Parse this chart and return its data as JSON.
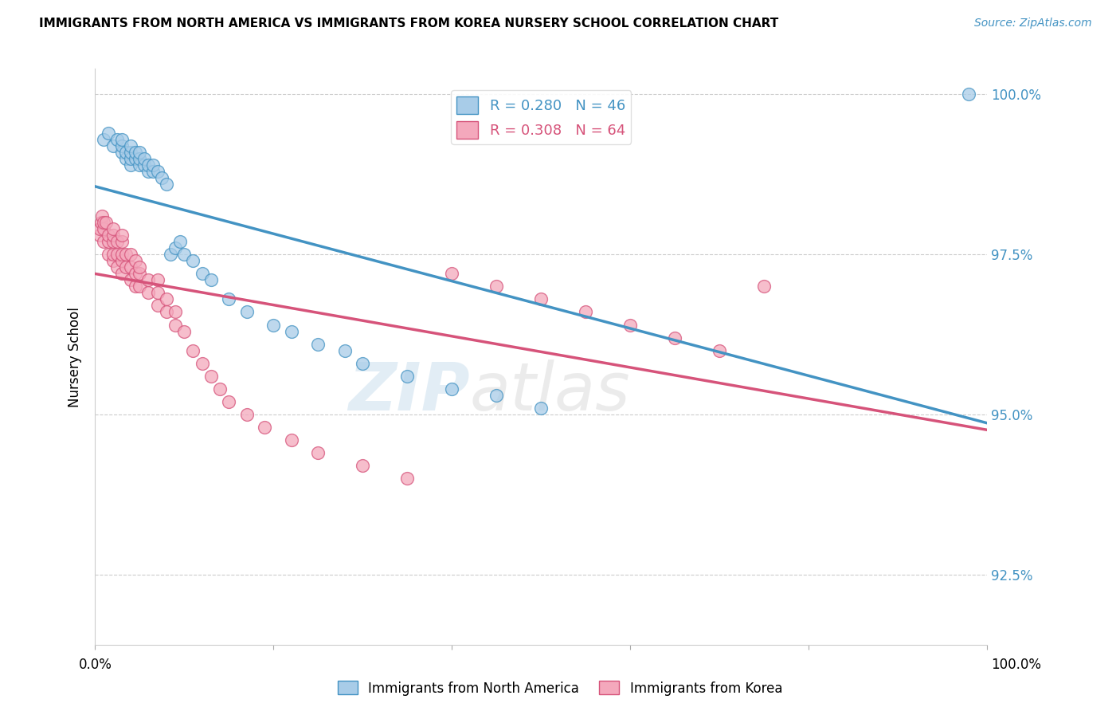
{
  "title": "IMMIGRANTS FROM NORTH AMERICA VS IMMIGRANTS FROM KOREA NURSERY SCHOOL CORRELATION CHART",
  "source": "Source: ZipAtlas.com",
  "ylabel": "Nursery School",
  "y_ticks": [
    92.5,
    95.0,
    97.5,
    100.0
  ],
  "y_tick_labels": [
    "92.5%",
    "95.0%",
    "97.5%",
    "100.0%"
  ],
  "x_range": [
    0.0,
    1.0
  ],
  "y_range": [
    0.914,
    1.004
  ],
  "legend_blue_label": "R = 0.280   N = 46",
  "legend_pink_label": "R = 0.308   N = 64",
  "legend_bottom_blue": "Immigrants from North America",
  "legend_bottom_pink": "Immigrants from Korea",
  "blue_color": "#a8cce8",
  "pink_color": "#f4a8bc",
  "blue_line_color": "#4393c3",
  "pink_line_color": "#d6537a",
  "blue_edge_color": "#4393c3",
  "pink_edge_color": "#d6537a",
  "north_america_x": [
    0.01,
    0.015,
    0.02,
    0.025,
    0.03,
    0.03,
    0.03,
    0.035,
    0.035,
    0.04,
    0.04,
    0.04,
    0.04,
    0.045,
    0.045,
    0.05,
    0.05,
    0.05,
    0.055,
    0.055,
    0.06,
    0.06,
    0.065,
    0.065,
    0.07,
    0.075,
    0.08,
    0.085,
    0.09,
    0.095,
    0.1,
    0.11,
    0.12,
    0.13,
    0.15,
    0.17,
    0.2,
    0.22,
    0.25,
    0.28,
    0.3,
    0.35,
    0.4,
    0.45,
    0.5,
    0.98
  ],
  "north_america_y": [
    0.993,
    0.994,
    0.992,
    0.993,
    0.991,
    0.992,
    0.993,
    0.99,
    0.991,
    0.989,
    0.99,
    0.991,
    0.992,
    0.99,
    0.991,
    0.989,
    0.99,
    0.991,
    0.989,
    0.99,
    0.988,
    0.989,
    0.988,
    0.989,
    0.988,
    0.987,
    0.986,
    0.975,
    0.976,
    0.977,
    0.975,
    0.974,
    0.972,
    0.971,
    0.968,
    0.966,
    0.964,
    0.963,
    0.961,
    0.96,
    0.958,
    0.956,
    0.954,
    0.953,
    0.951,
    1.0
  ],
  "korea_x": [
    0.005,
    0.005,
    0.007,
    0.008,
    0.01,
    0.01,
    0.01,
    0.012,
    0.015,
    0.015,
    0.015,
    0.02,
    0.02,
    0.02,
    0.02,
    0.02,
    0.025,
    0.025,
    0.025,
    0.03,
    0.03,
    0.03,
    0.03,
    0.03,
    0.035,
    0.035,
    0.04,
    0.04,
    0.04,
    0.045,
    0.045,
    0.045,
    0.05,
    0.05,
    0.05,
    0.06,
    0.06,
    0.07,
    0.07,
    0.07,
    0.08,
    0.08,
    0.09,
    0.09,
    0.1,
    0.11,
    0.12,
    0.13,
    0.14,
    0.15,
    0.17,
    0.19,
    0.22,
    0.25,
    0.3,
    0.35,
    0.4,
    0.45,
    0.5,
    0.55,
    0.6,
    0.65,
    0.7,
    0.75
  ],
  "korea_y": [
    0.978,
    0.979,
    0.98,
    0.981,
    0.977,
    0.979,
    0.98,
    0.98,
    0.975,
    0.977,
    0.978,
    0.974,
    0.975,
    0.977,
    0.978,
    0.979,
    0.973,
    0.975,
    0.977,
    0.972,
    0.974,
    0.975,
    0.977,
    0.978,
    0.973,
    0.975,
    0.971,
    0.973,
    0.975,
    0.97,
    0.972,
    0.974,
    0.97,
    0.972,
    0.973,
    0.969,
    0.971,
    0.967,
    0.969,
    0.971,
    0.966,
    0.968,
    0.964,
    0.966,
    0.963,
    0.96,
    0.958,
    0.956,
    0.954,
    0.952,
    0.95,
    0.948,
    0.946,
    0.944,
    0.942,
    0.94,
    0.972,
    0.97,
    0.968,
    0.966,
    0.964,
    0.962,
    0.96,
    0.97
  ]
}
